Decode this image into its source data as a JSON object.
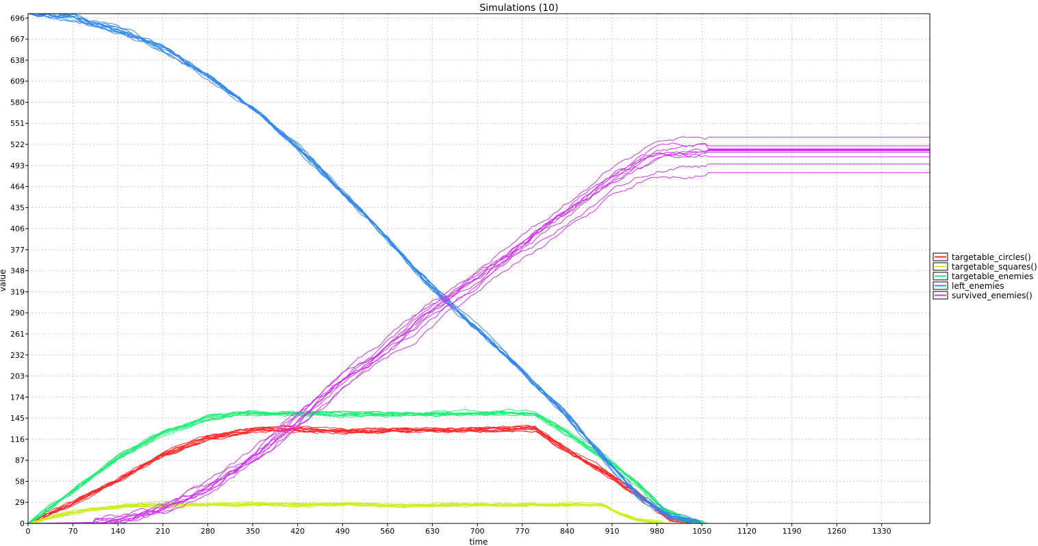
{
  "chart_data": {
    "type": "line",
    "title": "Simulations (10)",
    "xlabel": "time",
    "ylabel": "value",
    "xlim": [
      0,
      1405
    ],
    "ylim": [
      0,
      702
    ],
    "x_ticks": [
      0,
      70,
      140,
      210,
      280,
      350,
      420,
      490,
      560,
      630,
      700,
      770,
      840,
      910,
      980,
      1050,
      1120,
      1190,
      1260,
      1330
    ],
    "y_ticks": [
      0,
      29,
      58,
      87,
      116,
      145,
      174,
      203,
      232,
      261,
      290,
      319,
      348,
      377,
      406,
      435,
      464,
      493,
      522,
      551,
      580,
      609,
      638,
      667,
      696
    ],
    "grid": true,
    "legend_position": "right",
    "runs": 10,
    "series": [
      {
        "name": "targetable_circles()",
        "color": "#ff2a2a",
        "points": [
          [
            0,
            0
          ],
          [
            70,
            28
          ],
          [
            140,
            60
          ],
          [
            210,
            95
          ],
          [
            280,
            118
          ],
          [
            350,
            128
          ],
          [
            420,
            129
          ],
          [
            490,
            128
          ],
          [
            560,
            128
          ],
          [
            630,
            128
          ],
          [
            700,
            129
          ],
          [
            770,
            130
          ],
          [
            790,
            130
          ],
          [
            840,
            100
          ],
          [
            900,
            70
          ],
          [
            950,
            40
          ],
          [
            1000,
            5
          ],
          [
            1050,
            0
          ],
          [
            1405,
            0
          ]
        ],
        "noise": 3,
        "end_offsets": [
          0,
          0,
          0,
          0,
          0,
          0,
          0,
          0,
          0,
          0
        ]
      },
      {
        "name": "targetable_squares()",
        "color": "#ccee22",
        "points": [
          [
            0,
            0
          ],
          [
            50,
            12
          ],
          [
            100,
            20
          ],
          [
            150,
            24
          ],
          [
            210,
            26
          ],
          [
            280,
            26
          ],
          [
            350,
            27
          ],
          [
            420,
            26
          ],
          [
            490,
            26
          ],
          [
            560,
            25
          ],
          [
            630,
            25
          ],
          [
            700,
            26
          ],
          [
            770,
            26
          ],
          [
            840,
            26
          ],
          [
            895,
            26
          ],
          [
            920,
            15
          ],
          [
            950,
            5
          ],
          [
            980,
            1
          ],
          [
            1000,
            0
          ],
          [
            1405,
            0
          ]
        ],
        "noise": 2,
        "end_offsets": [
          0,
          0,
          0,
          0,
          0,
          0,
          0,
          0,
          0,
          0
        ]
      },
      {
        "name": "targetable_enemies",
        "color": "#22ee77",
        "points": [
          [
            0,
            0
          ],
          [
            70,
            45
          ],
          [
            140,
            90
          ],
          [
            210,
            125
          ],
          [
            280,
            145
          ],
          [
            350,
            152
          ],
          [
            420,
            152
          ],
          [
            490,
            150
          ],
          [
            560,
            150
          ],
          [
            630,
            151
          ],
          [
            700,
            152
          ],
          [
            770,
            153
          ],
          [
            790,
            152
          ],
          [
            840,
            125
          ],
          [
            900,
            90
          ],
          [
            950,
            55
          ],
          [
            990,
            20
          ],
          [
            1030,
            3
          ],
          [
            1060,
            0
          ],
          [
            1405,
            0
          ]
        ],
        "noise": 3,
        "end_offsets": [
          0,
          0,
          0,
          0,
          0,
          0,
          0,
          0,
          0,
          0
        ]
      },
      {
        "name": "left_enemies",
        "color": "#3388ee",
        "points": [
          [
            0,
            702
          ],
          [
            70,
            697
          ],
          [
            140,
            680
          ],
          [
            210,
            655
          ],
          [
            280,
            617
          ],
          [
            350,
            572
          ],
          [
            420,
            518
          ],
          [
            490,
            455
          ],
          [
            560,
            393
          ],
          [
            630,
            325
          ],
          [
            700,
            268
          ],
          [
            770,
            208
          ],
          [
            840,
            148
          ],
          [
            900,
            88
          ],
          [
            950,
            40
          ],
          [
            1000,
            12
          ],
          [
            1050,
            0
          ],
          [
            1405,
            0
          ]
        ],
        "noise": 4,
        "end_offsets": [
          0,
          0,
          0,
          0,
          0,
          0,
          0,
          0,
          0,
          0
        ]
      },
      {
        "name": "survived_enemies()",
        "color": "#cc33ee",
        "points": [
          [
            0,
            0
          ],
          [
            70,
            0
          ],
          [
            100,
            0
          ],
          [
            140,
            5
          ],
          [
            210,
            22
          ],
          [
            280,
            50
          ],
          [
            350,
            92
          ],
          [
            420,
            145
          ],
          [
            490,
            198
          ],
          [
            560,
            245
          ],
          [
            630,
            293
          ],
          [
            700,
            338
          ],
          [
            770,
            385
          ],
          [
            840,
            430
          ],
          [
            910,
            478
          ],
          [
            980,
            508
          ],
          [
            1050,
            516
          ],
          [
            1405,
            516
          ]
        ],
        "noise": 5,
        "end_offsets": [
          16,
          4,
          0,
          -1,
          -2,
          -3,
          -5,
          -11,
          -21,
          -33
        ]
      }
    ]
  }
}
